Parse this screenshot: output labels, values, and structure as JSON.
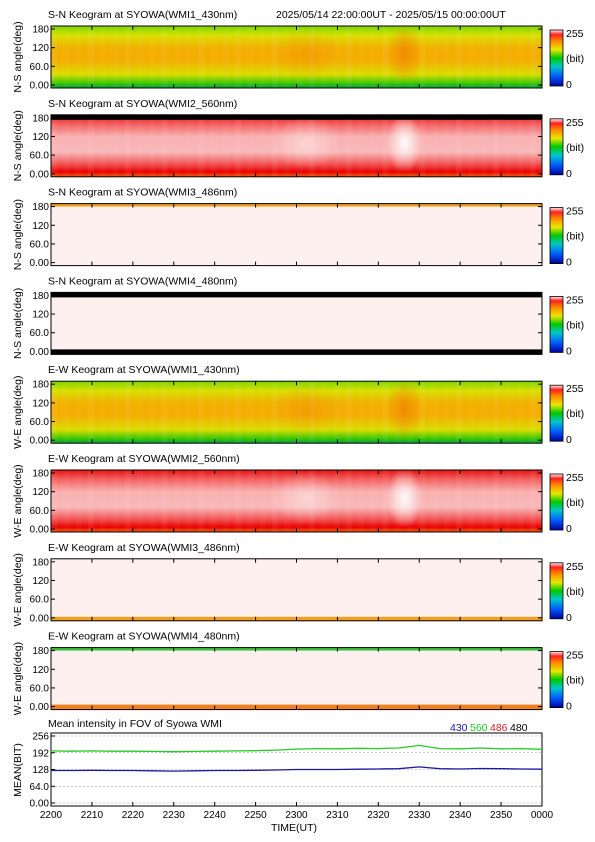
{
  "header": {
    "time_range": "2025/05/14 22:00:00UT - 2025/05/15 00:00:00UT"
  },
  "chart_data": [
    {
      "type": "heatmap",
      "title": "S-N Keogram at SYOWA(WMI1_430nm)",
      "ylabel": "N-S angle(deg)",
      "yticks": [
        "180",
        "120",
        "60.0",
        "0.00"
      ],
      "ylim": [
        0,
        180
      ],
      "colorbar": {
        "max": "255",
        "unit": "(bit)",
        "min": "0"
      },
      "palette": "green",
      "gap_top": false,
      "gap_bottom": false,
      "edge_band": "none"
    },
    {
      "type": "heatmap",
      "title": "S-N Keogram at SYOWA(WMI2_560nm)",
      "ylabel": "N-S angle(deg)",
      "yticks": [
        "180",
        "120",
        "60.0",
        "0.00"
      ],
      "ylim": [
        0,
        180
      ],
      "colorbar": {
        "max": "255",
        "unit": "(bit)",
        "min": "0"
      },
      "palette": "red",
      "gap_top": true,
      "gap_bottom": false,
      "edge_band": "none"
    },
    {
      "type": "heatmap",
      "title": "S-N Keogram at SYOWA(WMI3_486nm)",
      "ylabel": "N-S angle(deg)",
      "yticks": [
        "180",
        "120",
        "60.0",
        "0.00"
      ],
      "ylim": [
        0,
        180
      ],
      "colorbar": {
        "max": "255",
        "unit": "(bit)",
        "min": "0"
      },
      "palette": "pale",
      "gap_top": false,
      "gap_bottom": false,
      "edge_band": "top-orange"
    },
    {
      "type": "heatmap",
      "title": "S-N Keogram at SYOWA(WMI4_480nm)",
      "ylabel": "N-S angle(deg)",
      "yticks": [
        "180",
        "120",
        "60.0",
        "0.00"
      ],
      "ylim": [
        0,
        180
      ],
      "colorbar": {
        "max": "255",
        "unit": "(bit)",
        "min": "0"
      },
      "palette": "pale",
      "gap_top": true,
      "gap_bottom": true,
      "edge_band": "none"
    },
    {
      "type": "heatmap",
      "title": "E-W Keogram at SYOWA(WMI1_430nm)",
      "ylabel": "W-E angle(deg)",
      "yticks": [
        "180",
        "120",
        "60.0",
        "0.00"
      ],
      "ylim": [
        0,
        180
      ],
      "colorbar": {
        "max": "255",
        "unit": "(bit)",
        "min": "0"
      },
      "palette": "green",
      "gap_top": false,
      "gap_bottom": false,
      "edge_band": "none"
    },
    {
      "type": "heatmap",
      "title": "E-W Keogram at SYOWA(WMI2_560nm)",
      "ylabel": "W-E angle(deg)",
      "yticks": [
        "180",
        "120",
        "60.0",
        "0.00"
      ],
      "ylim": [
        0,
        180
      ],
      "colorbar": {
        "max": "255",
        "unit": "(bit)",
        "min": "0"
      },
      "palette": "red",
      "gap_top": false,
      "gap_bottom": false,
      "edge_band": "none"
    },
    {
      "type": "heatmap",
      "title": "E-W Keogram at SYOWA(WMI3_486nm)",
      "ylabel": "W-E angle(deg)",
      "yticks": [
        "180",
        "120",
        "60.0",
        "0.00"
      ],
      "ylim": [
        0,
        180
      ],
      "colorbar": {
        "max": "255",
        "unit": "(bit)",
        "min": "0"
      },
      "palette": "pale",
      "gap_top": false,
      "gap_bottom": false,
      "edge_band": "bottom-orange"
    },
    {
      "type": "heatmap",
      "title": "E-W Keogram at SYOWA(WMI4_480nm)",
      "ylabel": "W-E angle(deg)",
      "yticks": [
        "180",
        "120",
        "60.0",
        "0.00"
      ],
      "ylim": [
        0,
        180
      ],
      "colorbar": {
        "max": "255",
        "unit": "(bit)",
        "min": "0"
      },
      "palette": "pale",
      "gap_top": false,
      "gap_bottom": false,
      "edge_band": "green-orange"
    },
    {
      "type": "line",
      "title": "Mean intensity in FOV of Syowa WMI",
      "ylabel": "MEAN(BIT)",
      "xlabel": "TIME(UT)",
      "yticks": [
        "256",
        "192",
        "128",
        "64.0",
        "0.00"
      ],
      "ylim": [
        0,
        256
      ],
      "xticks": [
        "2200",
        "2210",
        "2220",
        "2230",
        "2240",
        "2250",
        "2300",
        "2310",
        "2320",
        "2330",
        "2340",
        "2350",
        "0000"
      ],
      "legend": [
        {
          "name": "430",
          "color": "#1a1aa0"
        },
        {
          "name": "560",
          "color": "#22cc22"
        },
        {
          "name": "486",
          "color": "#cc2222"
        },
        {
          "name": "480",
          "color": "#000000"
        }
      ],
      "x_minutes": [
        0,
        5,
        10,
        15,
        20,
        25,
        30,
        35,
        40,
        45,
        50,
        55,
        60,
        65,
        70,
        75,
        80,
        85,
        90,
        95,
        100,
        105,
        110,
        115,
        120
      ],
      "series": [
        {
          "name": "560",
          "color": "#22cc22",
          "values": [
            199,
            198,
            199,
            198,
            198,
            197,
            196,
            197,
            198,
            199,
            200,
            202,
            206,
            208,
            207,
            209,
            208,
            210,
            220,
            208,
            207,
            210,
            207,
            208,
            205
          ]
        },
        {
          "name": "430",
          "color": "#1a1aa0",
          "values": [
            124,
            124,
            125,
            124,
            124,
            123,
            122,
            123,
            124,
            124,
            125,
            126,
            128,
            128,
            128,
            129,
            130,
            131,
            138,
            131,
            130,
            132,
            131,
            130,
            129
          ]
        }
      ]
    }
  ]
}
